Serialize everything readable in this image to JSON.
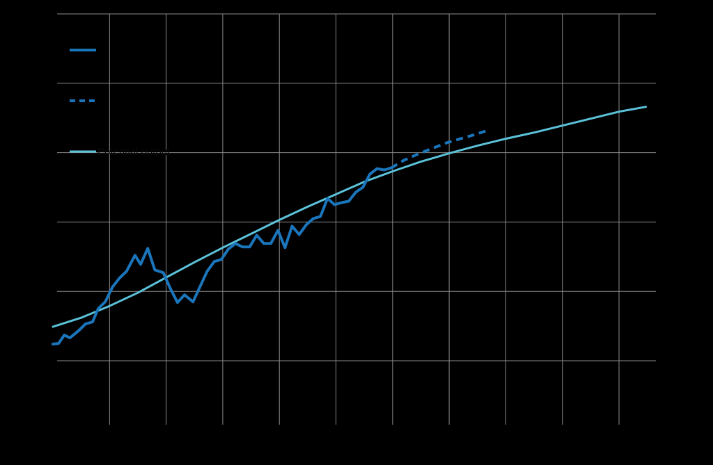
{
  "colors": {
    "background": "#000000",
    "grid": "#8c8c8c",
    "actual": "#1b75bb",
    "projected": "#1b75bb",
    "trend": "#5bc2d9",
    "label_text": "#0a0a0a"
  },
  "chart_data": {
    "type": "line",
    "title": "",
    "xlabel": "",
    "ylabel": "",
    "grid": true,
    "legend_position": "top-left",
    "x_gridlines": [
      2,
      4,
      6,
      8,
      10,
      12,
      14,
      16,
      18,
      20
    ],
    "y_gridlines": [
      0,
      1,
      2,
      3,
      4,
      5
    ],
    "xlim": [
      0,
      21.5
    ],
    "ylim": [
      -1,
      5
    ],
    "series": [
      {
        "key": "actual",
        "name": "",
        "style": "solid",
        "color": "#1b75bb",
        "x": [
          0,
          0.2,
          0.4,
          0.6,
          0.9,
          1.15,
          1.4,
          1.6,
          1.85,
          2.1,
          2.35,
          2.6,
          2.9,
          3.1,
          3.35,
          3.6,
          3.9,
          4.15,
          4.4,
          4.65,
          4.95,
          5.2,
          5.45,
          5.7,
          5.95,
          6.2,
          6.45,
          6.7,
          6.95,
          7.2,
          7.45,
          7.7,
          7.95,
          8.2,
          8.45,
          8.7,
          8.95,
          9.2,
          9.45,
          9.7,
          9.95,
          10.2,
          10.45,
          10.7,
          10.95,
          11.2,
          11.45,
          11.7,
          11.95
        ],
        "y": [
          0.24,
          0.25,
          0.37,
          0.33,
          0.43,
          0.53,
          0.56,
          0.75,
          0.85,
          1.06,
          1.19,
          1.29,
          1.52,
          1.39,
          1.62,
          1.31,
          1.27,
          1.04,
          0.84,
          0.95,
          0.85,
          1.07,
          1.29,
          1.43,
          1.46,
          1.61,
          1.69,
          1.64,
          1.64,
          1.81,
          1.69,
          1.69,
          1.88,
          1.63,
          1.94,
          1.82,
          1.96,
          2.05,
          2.08,
          2.34,
          2.25,
          2.28,
          2.3,
          2.43,
          2.5,
          2.69,
          2.77,
          2.75,
          2.78
        ]
      },
      {
        "key": "projected",
        "name": "",
        "style": "dashed",
        "color": "#1b75bb",
        "x": [
          11.95,
          12.4,
          12.9,
          13.4,
          13.9,
          14.4,
          14.9,
          15.35
        ],
        "y": [
          2.78,
          2.89,
          2.98,
          3.06,
          3.14,
          3.2,
          3.26,
          3.32
        ]
      },
      {
        "key": "trend",
        "name": "Potential output",
        "style": "solid",
        "color": "#5bc2d9",
        "x": [
          0,
          1,
          2,
          3,
          4,
          5,
          6,
          7,
          8,
          9,
          10,
          11,
          12,
          13,
          14,
          15,
          16,
          17,
          18,
          19,
          20,
          20.95
        ],
        "y": [
          0.49,
          0.62,
          0.79,
          0.98,
          1.2,
          1.42,
          1.63,
          1.83,
          2.03,
          2.22,
          2.4,
          2.58,
          2.73,
          2.87,
          2.99,
          3.1,
          3.2,
          3.29,
          3.39,
          3.49,
          3.59,
          3.66
        ]
      }
    ]
  }
}
